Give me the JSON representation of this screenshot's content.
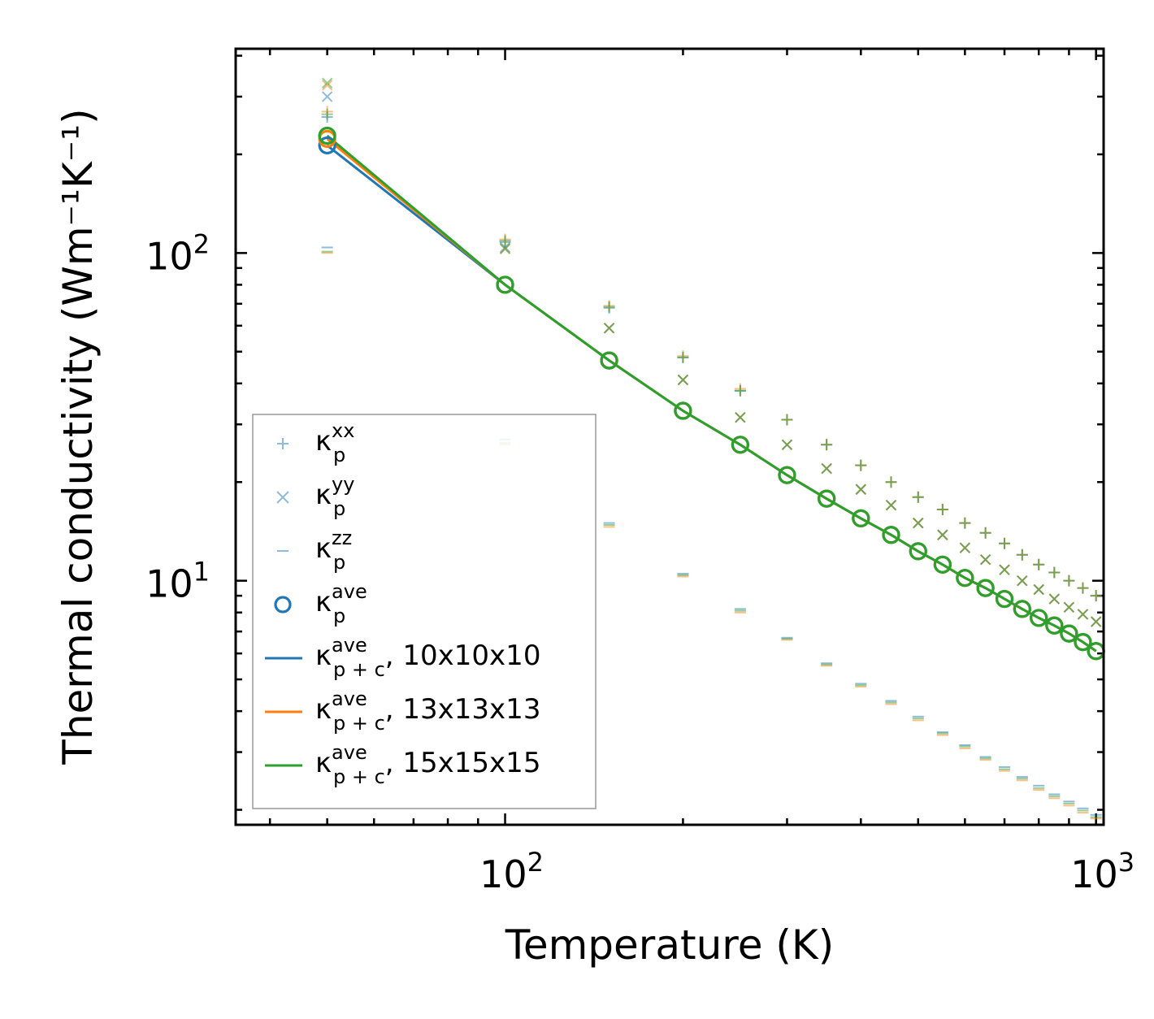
{
  "chart_data": {
    "type": "scatter",
    "x_scale": "log",
    "y_scale": "log",
    "xlabel": "Temperature (K)",
    "ylabel": "Thermal conductivity (Wm⁻¹K⁻¹)",
    "xlim": [
      35,
      1030
    ],
    "ylim": [
      1.8,
      420
    ],
    "x_ticks": [
      100,
      1000
    ],
    "x_tick_labels": [
      {
        "base": "10",
        "exp": "2"
      },
      {
        "base": "10",
        "exp": "3"
      }
    ],
    "y_ticks": [
      10,
      100
    ],
    "y_tick_labels": [
      {
        "base": "10",
        "exp": "1"
      },
      {
        "base": "10",
        "exp": "2"
      }
    ],
    "temperatures": [
      50,
      100,
      150,
      200,
      250,
      300,
      350,
      400,
      450,
      500,
      550,
      600,
      650,
      700,
      750,
      800,
      850,
      900,
      950,
      1000
    ],
    "series": [
      {
        "name": "10x10x10",
        "color": "#1f77b4",
        "kxx": [
          260,
          108,
          68,
          48,
          38,
          31,
          26,
          22.5,
          20,
          18,
          16.5,
          15,
          14,
          13,
          12,
          11.2,
          10.6,
          10,
          9.5,
          9
        ],
        "kyy": [
          300,
          104,
          59,
          41,
          31.5,
          26,
          22,
          19,
          17,
          15,
          13.8,
          12.6,
          11.6,
          10.8,
          10,
          9.4,
          8.8,
          8.3,
          7.9,
          7.5
        ],
        "kzz": [
          104,
          27,
          15,
          10.5,
          8.2,
          6.7,
          5.6,
          4.85,
          4.3,
          3.85,
          3.45,
          3.15,
          2.9,
          2.7,
          2.52,
          2.37,
          2.23,
          2.12,
          2.02,
          1.93
        ],
        "kave": [
          213,
          80,
          47,
          33,
          26,
          21,
          17.8,
          15.5,
          13.8,
          12.3,
          11.2,
          10.2,
          9.5,
          8.8,
          8.2,
          7.7,
          7.3,
          6.9,
          6.5,
          6.1
        ],
        "kpc": [
          213,
          80,
          47,
          33,
          26,
          21,
          17.8,
          15.5,
          13.8,
          12.3,
          11.2,
          10.2,
          9.5,
          8.8,
          8.2,
          7.7,
          7.3,
          6.9,
          6.5,
          6.1
        ]
      },
      {
        "name": "13x13x13",
        "color": "#ff7f0e",
        "kxx": [
          270,
          110,
          69,
          48.5,
          38.5,
          31,
          26,
          22.5,
          20,
          18,
          16.5,
          15,
          14,
          13,
          12,
          11.2,
          10.6,
          10,
          9.5,
          9
        ],
        "kyy": [
          325,
          103,
          59,
          41,
          31.5,
          26,
          22,
          19,
          17,
          15,
          13.8,
          12.6,
          11.6,
          10.8,
          10,
          9.4,
          8.8,
          8.3,
          7.9,
          7.5
        ],
        "kzz": [
          100,
          26,
          14.6,
          10.3,
          8,
          6.6,
          5.5,
          4.75,
          4.2,
          3.75,
          3.38,
          3.08,
          2.84,
          2.63,
          2.46,
          2.3,
          2.17,
          2.06,
          1.96,
          1.88
        ],
        "kave": [
          223,
          80,
          47,
          33,
          26,
          21,
          17.8,
          15.5,
          13.8,
          12.3,
          11.2,
          10.2,
          9.5,
          8.8,
          8.2,
          7.7,
          7.3,
          6.9,
          6.5,
          6.1
        ],
        "kpc": [
          223,
          80,
          47,
          33,
          26,
          21,
          17.8,
          15.5,
          13.8,
          12.3,
          11.2,
          10.2,
          9.5,
          8.8,
          8.2,
          7.7,
          7.3,
          6.9,
          6.5,
          6.1
        ]
      },
      {
        "name": "15x15x15",
        "color": "#2ca02c",
        "kxx": [
          265,
          109,
          68.5,
          48,
          38,
          31,
          26,
          22.5,
          20,
          18,
          16.5,
          15,
          14,
          13,
          12,
          11.2,
          10.6,
          10,
          9.5,
          9
        ],
        "kyy": [
          330,
          103,
          59,
          41,
          31.5,
          26,
          22,
          19,
          17,
          15,
          13.8,
          12.6,
          11.6,
          10.8,
          10,
          9.4,
          8.8,
          8.3,
          7.9,
          7.5
        ],
        "kzz": [
          101,
          26.3,
          14.8,
          10.4,
          8.1,
          6.65,
          5.55,
          4.8,
          4.25,
          3.8,
          3.42,
          3.12,
          2.87,
          2.66,
          2.49,
          2.33,
          2.2,
          2.09,
          1.99,
          1.9
        ],
        "kave": [
          228,
          80,
          47,
          33,
          26,
          21,
          17.8,
          15.5,
          13.8,
          12.3,
          11.2,
          10.2,
          9.5,
          8.8,
          8.2,
          7.7,
          7.3,
          6.9,
          6.5,
          6.1
        ],
        "kpc": [
          228,
          80,
          47,
          33,
          26,
          21,
          17.8,
          15.5,
          13.8,
          12.3,
          11.2,
          10.2,
          9.5,
          8.8,
          8.2,
          7.7,
          7.3,
          6.9,
          6.5,
          6.1
        ]
      }
    ],
    "legend": {
      "placement": "lower-left",
      "entries": [
        {
          "marker": "plus",
          "base": "κ",
          "sub": "p",
          "sup": "xx",
          "suffix": ""
        },
        {
          "marker": "x",
          "base": "κ",
          "sub": "p",
          "sup": "yy",
          "suffix": ""
        },
        {
          "marker": "dash",
          "base": "κ",
          "sub": "p",
          "sup": "zz",
          "suffix": ""
        },
        {
          "marker": "circle",
          "base": "κ",
          "sub": "p",
          "sup": "ave",
          "suffix": ""
        },
        {
          "marker": "line",
          "color": "#1f77b4",
          "base": "κ",
          "sub": "p + c",
          "sup": "ave",
          "suffix": ", 10x10x10"
        },
        {
          "marker": "line",
          "color": "#ff7f0e",
          "base": "κ",
          "sub": "p + c",
          "sup": "ave",
          "suffix": ", 13x13x13"
        },
        {
          "marker": "line",
          "color": "#2ca02c",
          "base": "κ",
          "sub": "p + c",
          "sup": "ave",
          "suffix": ", 15x15x15"
        }
      ],
      "marker_color": "#1f77b4"
    }
  }
}
